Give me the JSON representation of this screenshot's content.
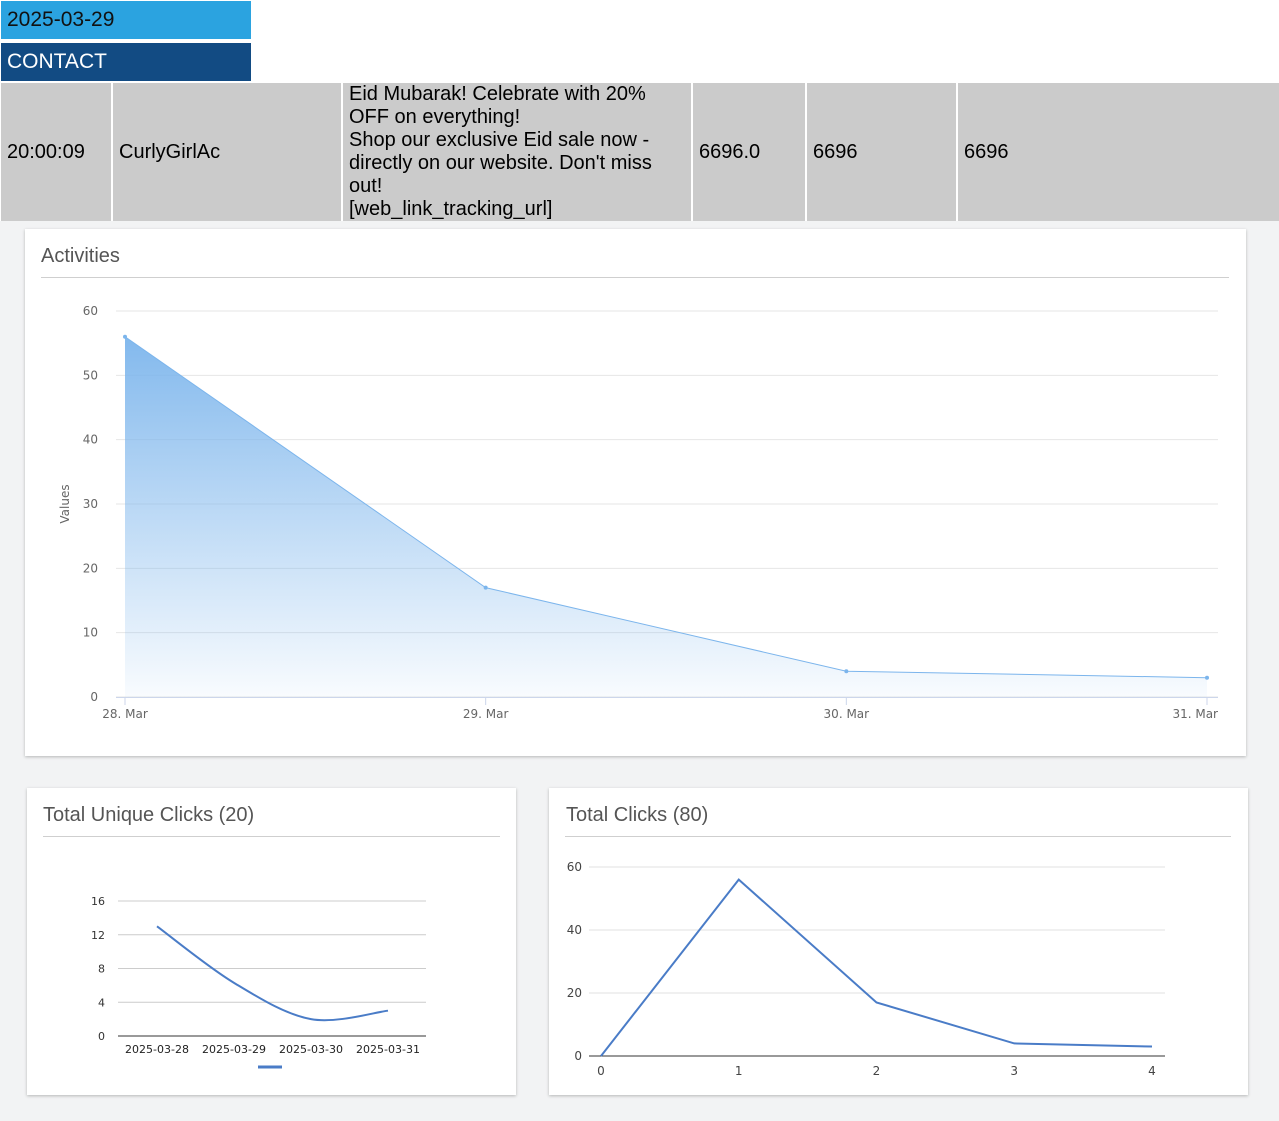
{
  "header": {
    "date": "2025-03-29",
    "section": "CONTACT"
  },
  "row": {
    "time": "20:00:09",
    "account": "CurlyGirlAc",
    "message": "Eid Mubarak! Celebrate with 20%\nOFF on everything!\nShop our exclusive Eid sale now -\ndirectly on our website. Don't miss\nout!\n[web_link_tracking_url]",
    "value_a": "6696.0",
    "value_b": "6696",
    "value_c": "6696"
  },
  "colors": {
    "date_bg": "#2ba3e0",
    "contact_bg": "#124b83",
    "row_bg": "#cbcbcb",
    "activities_line": "#7cb5ec",
    "clicks_line": "#4a7cc7"
  },
  "chart_data": [
    {
      "type": "area",
      "title": "Activities",
      "xlabel": "",
      "ylabel": "Values",
      "categories": [
        "28. Mar",
        "29. Mar",
        "30. Mar",
        "31. Mar"
      ],
      "series": [
        {
          "values": [
            56,
            17,
            4,
            3
          ]
        }
      ],
      "ylim": [
        0,
        60
      ],
      "yticks": [
        0,
        10,
        20,
        30,
        40,
        50,
        60
      ],
      "grid": true
    },
    {
      "type": "line",
      "title": "Total Unique Clicks (20)",
      "categories": [
        "2025-03-28",
        "2025-03-29",
        "2025-03-30",
        "2025-03-31"
      ],
      "series": [
        {
          "values": [
            13,
            6.3,
            2,
            3
          ]
        }
      ],
      "ylim": [
        0,
        16
      ],
      "yticks": [
        0,
        4,
        8,
        12,
        16
      ],
      "smooth": true,
      "grid": true,
      "legend": "bottom"
    },
    {
      "type": "line",
      "title": "Total Clicks (80)",
      "x": [
        0,
        1,
        2,
        3,
        4
      ],
      "series": [
        {
          "values": [
            0,
            56,
            17,
            4,
            3
          ]
        }
      ],
      "ylim": [
        0,
        60
      ],
      "yticks": [
        0,
        20,
        40,
        60
      ],
      "grid": true
    }
  ]
}
